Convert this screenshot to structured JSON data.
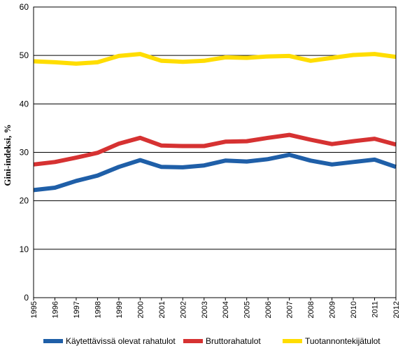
{
  "chart_data": {
    "type": "line",
    "ylabel": "Gini-indeksi, %",
    "xlabel": "",
    "ylim": [
      0,
      60
    ],
    "yticks": [
      0,
      10,
      20,
      30,
      40,
      50,
      60
    ],
    "grid": "horizontal",
    "legend_position": "bottom",
    "x": [
      "1995",
      "1996",
      "1997",
      "1998",
      "1999",
      "2000",
      "2001",
      "2002",
      "2003",
      "2004",
      "2005",
      "2006",
      "2007",
      "2008",
      "2009",
      "2010",
      "2011",
      "2012"
    ],
    "series": [
      {
        "name": "Käytettävissä olevat rahatulot",
        "color": "#1f5fa8",
        "values": [
          22.2,
          22.7,
          24.1,
          25.2,
          27.0,
          28.4,
          27.0,
          26.9,
          27.3,
          28.3,
          28.1,
          28.6,
          29.5,
          28.3,
          27.5,
          28.0,
          28.5,
          27.0
        ]
      },
      {
        "name": "Bruttorahatulot",
        "color": "#d63232",
        "values": [
          27.5,
          28.0,
          28.9,
          29.9,
          31.8,
          33.0,
          31.4,
          31.3,
          31.3,
          32.2,
          32.3,
          33.0,
          33.6,
          32.6,
          31.7,
          32.3,
          32.8,
          31.6
        ]
      },
      {
        "name": "Tuotannontekijätulot",
        "color": "#ffdd00",
        "values": [
          48.8,
          48.6,
          48.3,
          48.6,
          49.9,
          50.3,
          48.9,
          48.7,
          48.9,
          49.6,
          49.5,
          49.8,
          49.9,
          48.9,
          49.5,
          50.1,
          50.3,
          49.7
        ]
      }
    ]
  }
}
